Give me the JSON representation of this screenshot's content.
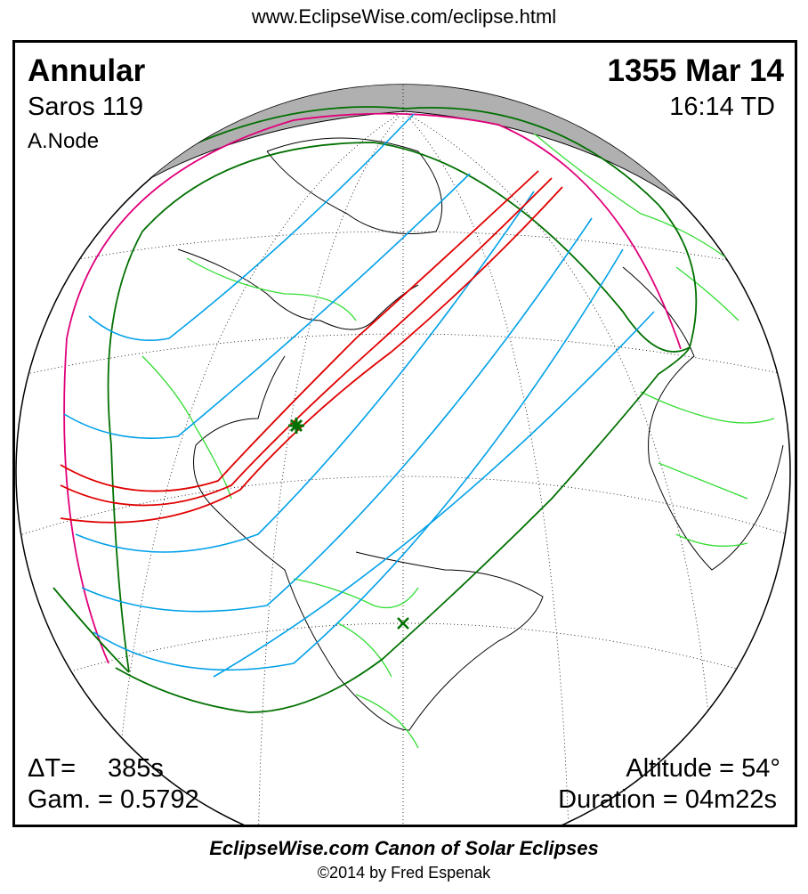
{
  "header": {
    "url": "www.EclipseWise.com/eclipse.html"
  },
  "eclipse": {
    "type": "Annular",
    "saros": "Saros 119",
    "node": "A.Node",
    "date": "1355 Mar 14",
    "time": "16:14 TD",
    "delta_t_label": "ΔT=",
    "delta_t_value": "385s",
    "gamma": "Gam. = 0.5792",
    "altitude": "Altitude = 54°",
    "duration": "Duration = 04m22s"
  },
  "footer": {
    "title": "EclipseWise.com Canon of Solar Eclipses",
    "copyright": "©2014 by Fred Espenak"
  },
  "colors": {
    "central_path": "#e00000",
    "penumbral_limits": "#007000",
    "time_lines": "#00a0e8",
    "rise_set_limit": "#e0007a",
    "borders": "#33dd33",
    "night": "#b0b0b0"
  },
  "markers": {
    "greatest_eclipse": "star-icon",
    "sub_solar": "x-icon"
  }
}
